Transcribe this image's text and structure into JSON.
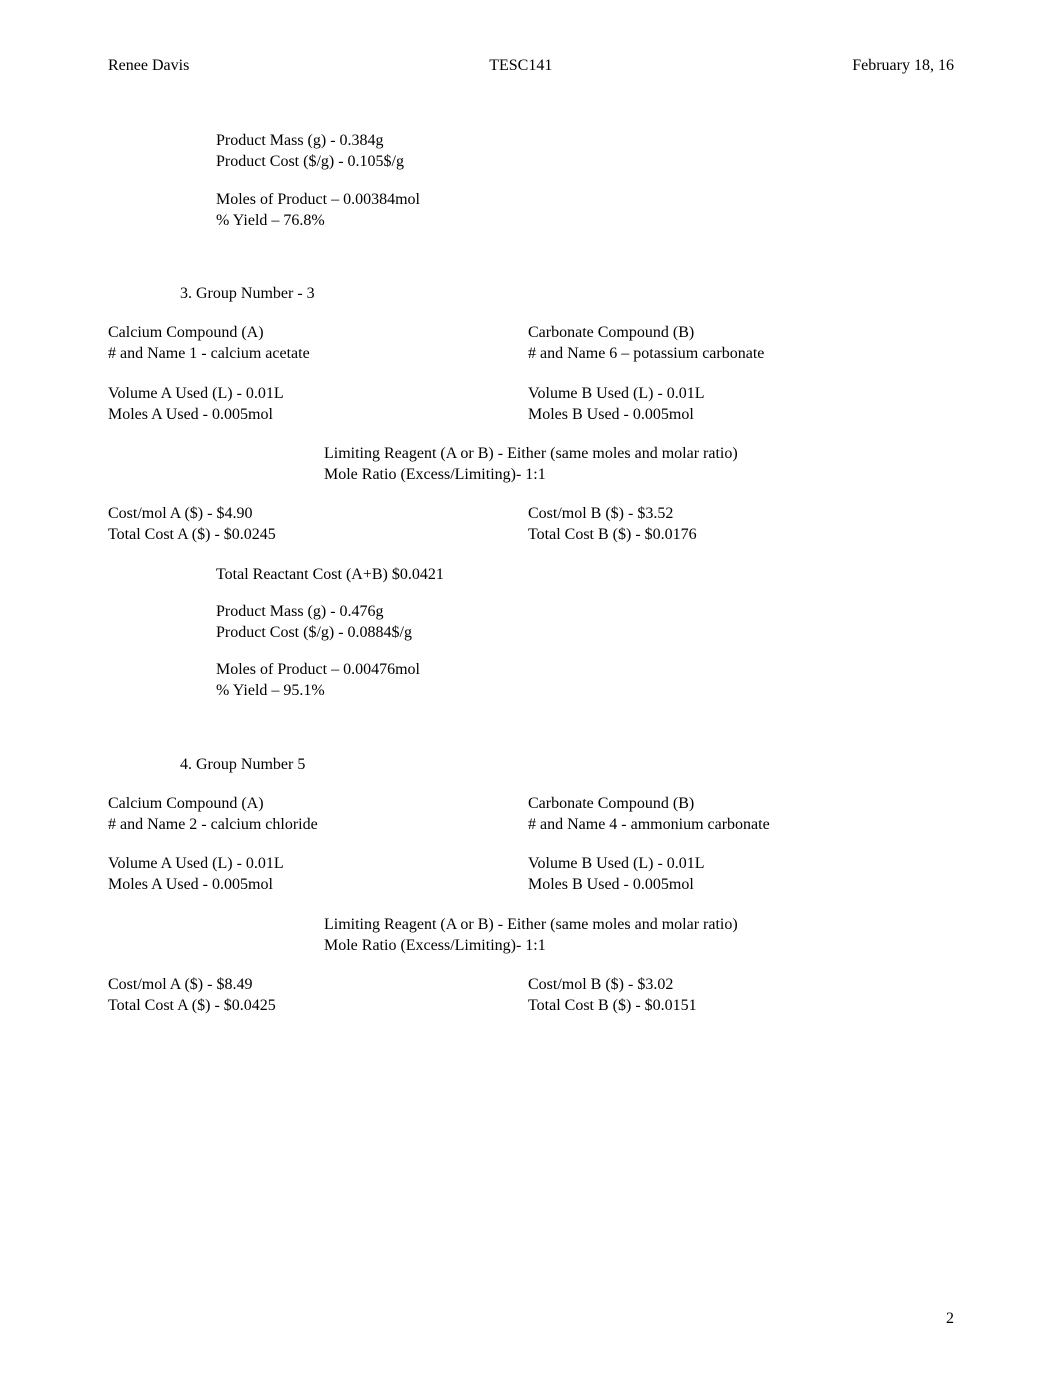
{
  "header": {
    "left": "Renee Davis",
    "center": "TESC141",
    "right": "February 18, 16"
  },
  "block1": {
    "prod_mass": "Product Mass (g) -  0.384g",
    "prod_cost": "Product Cost ($/g) - 0.105$/g",
    "moles_prod": "Moles of Product – 0.00384mol",
    "yield": "% Yield – 76.8%"
  },
  "group3": {
    "num_label": "3.   Group Number - 3",
    "compA_title": "Calcium Compound (A)",
    "compA_name": "# and Name  1 - calcium acetate",
    "compB_title": "Carbonate  Compound (B)",
    "compB_name": "# and Name  6 – potassium carbonate",
    "volA": "Volume A Used   (L) - 0.01L",
    "molesA": "Moles A Used - 0.005mol",
    "volB": "Volume B Used (L)  - 0.01L",
    "molesB": "Moles B Used - 0.005mol",
    "lim_reagent": "Limiting Reagent (A or B) -  Either (same moles and molar ratio)",
    "mole_ratio": "Mole Ratio (Excess/Limiting)- 1:1",
    "costmolA": "Cost/mol A ($) - $4.90",
    "totalA": "Total Cost A ($)  - $0.0245",
    "costmolB": "Cost/mol B ($) - $3.52",
    "totalB": "Total Cost B ($) - $0.0176",
    "total_reactant": "Total Reactant Cost (A+B)  $0.0421",
    "prod_mass": "Product Mass (g) -  0.476g",
    "prod_cost": "Product Cost ($/g) - 0.0884$/g",
    "moles_prod": "Moles of Product – 0.00476mol",
    "yield": "% Yield – 95.1%"
  },
  "group5": {
    "num_label": "4.   Group Number 5",
    "compA_title": "Calcium Compound (A)",
    "compA_name": "# and Name  2 - calcium chloride",
    "compB_title": "Carbonate  Compound (B)",
    "compB_name": "# and Name  4 - ammonium carbonate",
    "volA": "Volume A Used   (L) - 0.01L",
    "molesA": "Moles A Used - 0.005mol",
    "volB": "Volume B Used (L)  - 0.01L",
    "molesB": "Moles B Used - 0.005mol",
    "lim_reagent": "Limiting Reagent (A or B) - Either (same moles and molar ratio)",
    "mole_ratio": "Mole Ratio (Excess/Limiting)- 1:1",
    "costmolA": "Cost/mol A ($) - $8.49",
    "totalA": "Total Cost A ($)  - $0.0425",
    "costmolB": "Cost/mol B ($) - $3.02",
    "totalB": "Total Cost B ($) - $0.0151"
  },
  "page_num": "2"
}
